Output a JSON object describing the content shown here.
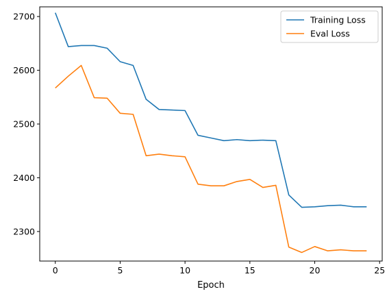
{
  "chart_data": {
    "type": "line",
    "xlabel": "Epoch",
    "ylabel": "",
    "xlim": [
      -1.2,
      25.2
    ],
    "ylim": [
      2245,
      2718
    ],
    "xticks": [
      0,
      5,
      10,
      15,
      20,
      25
    ],
    "yticks": [
      2300,
      2400,
      2500,
      2600,
      2700
    ],
    "legend_position": "top-right",
    "grid": false,
    "x": [
      0,
      1,
      2,
      3,
      4,
      5,
      6,
      7,
      8,
      9,
      10,
      11,
      12,
      13,
      14,
      15,
      16,
      17,
      18,
      19,
      20,
      21,
      22,
      23,
      24
    ],
    "series": [
      {
        "name": "Training Loss",
        "color": "#1f77b4",
        "values": [
          2707,
          2644,
          2646,
          2646,
          2641,
          2616,
          2609,
          2546,
          2527,
          2526,
          2525,
          2479,
          2474,
          2469,
          2471,
          2469,
          2470,
          2469,
          2368,
          2345,
          2346,
          2348,
          2349,
          2346,
          2346
        ]
      },
      {
        "name": "Eval Loss",
        "color": "#ff7f0e",
        "values": [
          2567,
          2589,
          2609,
          2549,
          2548,
          2520,
          2518,
          2441,
          2444,
          2441,
          2439,
          2388,
          2385,
          2385,
          2393,
          2397,
          2382,
          2386,
          2271,
          2261,
          2272,
          2264,
          2266,
          2264,
          2264
        ]
      }
    ]
  }
}
